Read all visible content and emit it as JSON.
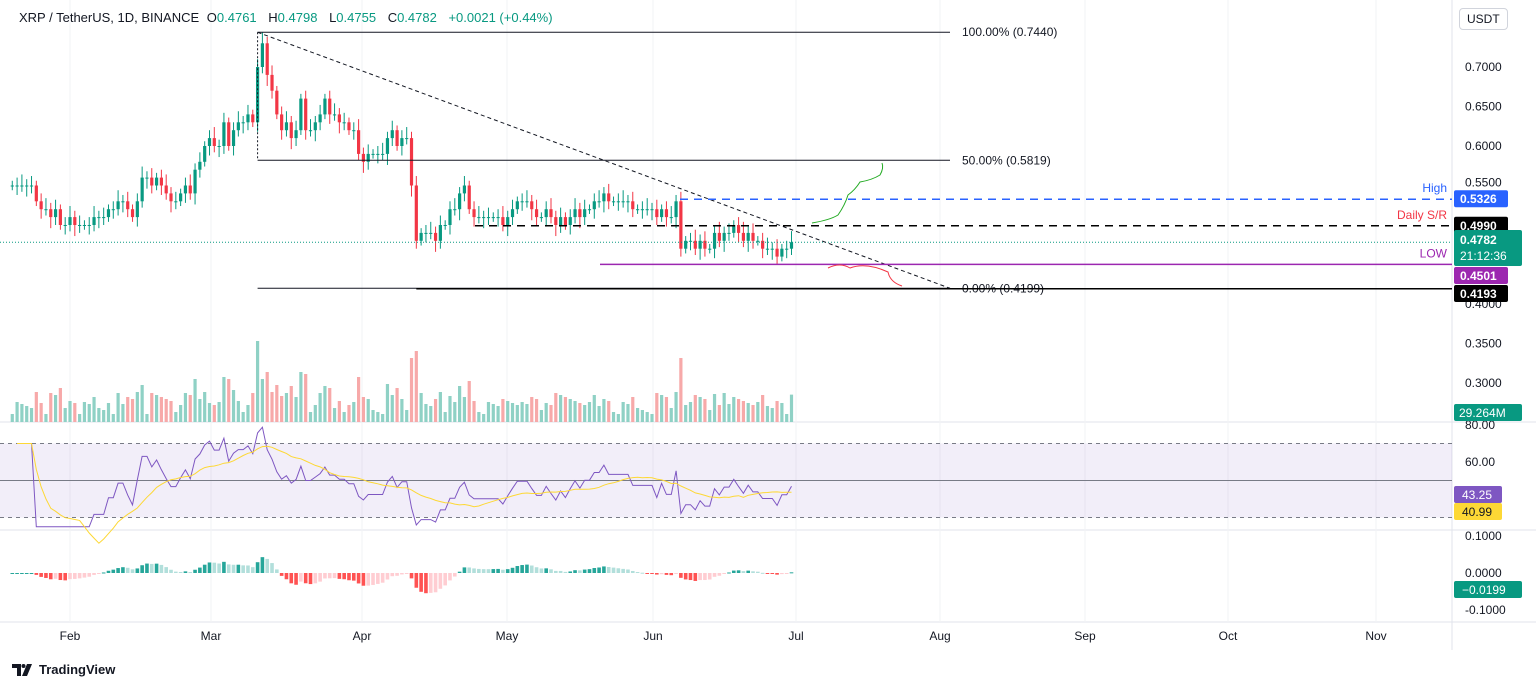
{
  "header": {
    "symbol": "XRP / TetherUS, 1D, BINANCE",
    "open_label": "O",
    "open": "0.4761",
    "high_label": "H",
    "high": "0.4798",
    "low_label": "L",
    "low": "0.4755",
    "close_label": "C",
    "close": "0.4782",
    "change": "+0.0021 (+0.44%)"
  },
  "currency_button": "USDT",
  "branding": "TradingView",
  "colors": {
    "up": "#089981",
    "down": "#f23645",
    "volUp": "#8fd1c5",
    "volDown": "#f7a9a9",
    "high": "#2962ff",
    "low": "#9c27b0",
    "rsi": "#7e57c2",
    "rsiMa": "#fdd835"
  },
  "chart_data": {
    "type": "candlestick",
    "start_date": "2024-01-20",
    "closes": [
      0.55,
      0.55,
      0.55,
      0.55,
      0.55,
      0.53,
      0.52,
      0.52,
      0.51,
      0.52,
      0.5,
      0.5,
      0.51,
      0.5,
      0.5,
      0.5,
      0.5,
      0.51,
      0.51,
      0.51,
      0.52,
      0.52,
      0.53,
      0.53,
      0.52,
      0.51,
      0.53,
      0.56,
      0.56,
      0.55,
      0.56,
      0.55,
      0.54,
      0.53,
      0.53,
      0.54,
      0.55,
      0.54,
      0.57,
      0.58,
      0.6,
      0.61,
      0.6,
      0.6,
      0.63,
      0.6,
      0.62,
      0.63,
      0.63,
      0.64,
      0.63,
      0.7,
      0.73,
      0.69,
      0.67,
      0.64,
      0.62,
      0.63,
      0.61,
      0.62,
      0.66,
      0.62,
      0.62,
      0.63,
      0.64,
      0.66,
      0.64,
      0.64,
      0.63,
      0.63,
      0.62,
      0.62,
      0.59,
      0.58,
      0.59,
      0.59,
      0.59,
      0.59,
      0.61,
      0.62,
      0.6,
      0.61,
      0.61,
      0.55,
      0.48,
      0.49,
      0.49,
      0.49,
      0.48,
      0.5,
      0.5,
      0.52,
      0.52,
      0.54,
      0.55,
      0.52,
      0.51,
      0.51,
      0.51,
      0.51,
      0.51,
      0.51,
      0.5,
      0.51,
      0.52,
      0.53,
      0.53,
      0.53,
      0.52,
      0.51,
      0.51,
      0.52,
      0.51,
      0.5,
      0.51,
      0.5,
      0.51,
      0.52,
      0.51,
      0.52,
      0.52,
      0.53,
      0.53,
      0.54,
      0.53,
      0.53,
      0.53,
      0.53,
      0.53,
      0.52,
      0.52,
      0.52,
      0.52,
      0.52,
      0.51,
      0.52,
      0.51,
      0.51,
      0.53,
      0.47,
      0.48,
      0.48,
      0.47,
      0.48,
      0.47,
      0.47,
      0.49,
      0.48,
      0.49,
      0.49,
      0.5,
      0.49,
      0.48,
      0.49,
      0.48,
      0.48,
      0.47,
      0.47,
      0.47,
      0.46,
      0.47,
      0.47,
      0.4782
    ],
    "price_axis": {
      "ticks": [
        "0.7000",
        "0.6500",
        "0.6000",
        "0.5500",
        "0.4000",
        "0.3500",
        "0.3000"
      ],
      "values": [
        0.7,
        0.65,
        0.6,
        0.55,
        0.4,
        0.35,
        0.3
      ]
    },
    "time_axis": [
      "Feb",
      "Mar",
      "Apr",
      "May",
      "Jun",
      "Jul",
      "Aug",
      "Sep",
      "Oct",
      "Nov"
    ],
    "fib": [
      {
        "label": "100.00% (0.7440)",
        "value": 0.744
      },
      {
        "label": "50.00% (0.5819)",
        "value": 0.5819
      },
      {
        "label": "0.00% (0.4199)",
        "value": 0.4199
      }
    ],
    "levels": [
      {
        "name": "High",
        "value": 0.5326,
        "tag": "0.5326",
        "color": "#2962ff",
        "style": "dashed"
      },
      {
        "name": "Daily S/R",
        "value": 0.499,
        "tag": "0.4990",
        "color": "#000000",
        "style": "dashed"
      },
      {
        "name": "LOW",
        "value": 0.4501,
        "tag": "0.4501",
        "color": "#9c27b0",
        "style": "solid"
      },
      {
        "name": "",
        "value": 0.4193,
        "tag": "0.4193",
        "color": "#000000",
        "style": "solid"
      }
    ],
    "last_price_tag": "0.4782",
    "countdown": "21:12:36",
    "volume_tag": "29.264M",
    "rsi": {
      "ticks": [
        "80.00",
        "60.00"
      ],
      "values": [
        80,
        60
      ],
      "value_tag": "43.25",
      "ma_tag": "40.99",
      "bands": [
        70,
        30
      ],
      "mid": 50
    },
    "macd": {
      "ticks": [
        "0.1000",
        "0.0000",
        "-0.1000"
      ],
      "values": [
        0.1,
        0,
        -0.1
      ],
      "value_tag": "−0.0199"
    }
  }
}
